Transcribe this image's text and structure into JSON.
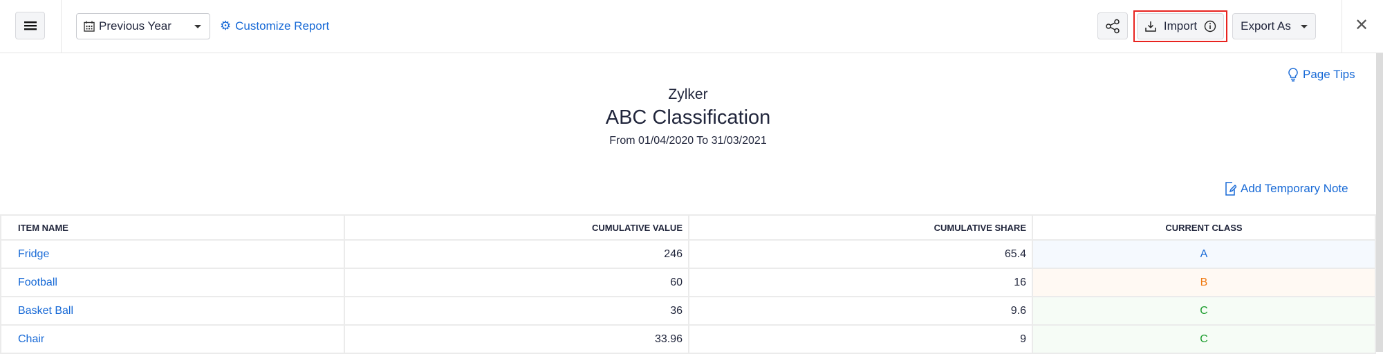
{
  "toolbar": {
    "period": "Previous Year",
    "customize": "Customize Report",
    "import": "Import",
    "export": "Export As"
  },
  "page_tips": "Page Tips",
  "report": {
    "org": "Zylker",
    "title": "ABC Classification",
    "range": "From 01/04/2020 To 31/03/2021"
  },
  "add_note": "Add Temporary Note",
  "table": {
    "headers": [
      "ITEM NAME",
      "CUMULATIVE VALUE",
      "CUMULATIVE SHARE",
      "CURRENT CLASS"
    ],
    "rows": [
      {
        "name": "Fridge",
        "value": "246",
        "share": "65.4",
        "class": "A"
      },
      {
        "name": "Football",
        "value": "60",
        "share": "16",
        "class": "B"
      },
      {
        "name": "Basket Ball",
        "value": "36",
        "share": "9.6",
        "class": "C"
      },
      {
        "name": "Chair",
        "value": "33.96",
        "share": "9",
        "class": "C"
      }
    ]
  },
  "colors": {
    "link": "#1769d6",
    "class_A": "#1769d6",
    "class_B": "#f07a12",
    "class_C": "#1a9c2c",
    "highlight": "#e8231f"
  }
}
